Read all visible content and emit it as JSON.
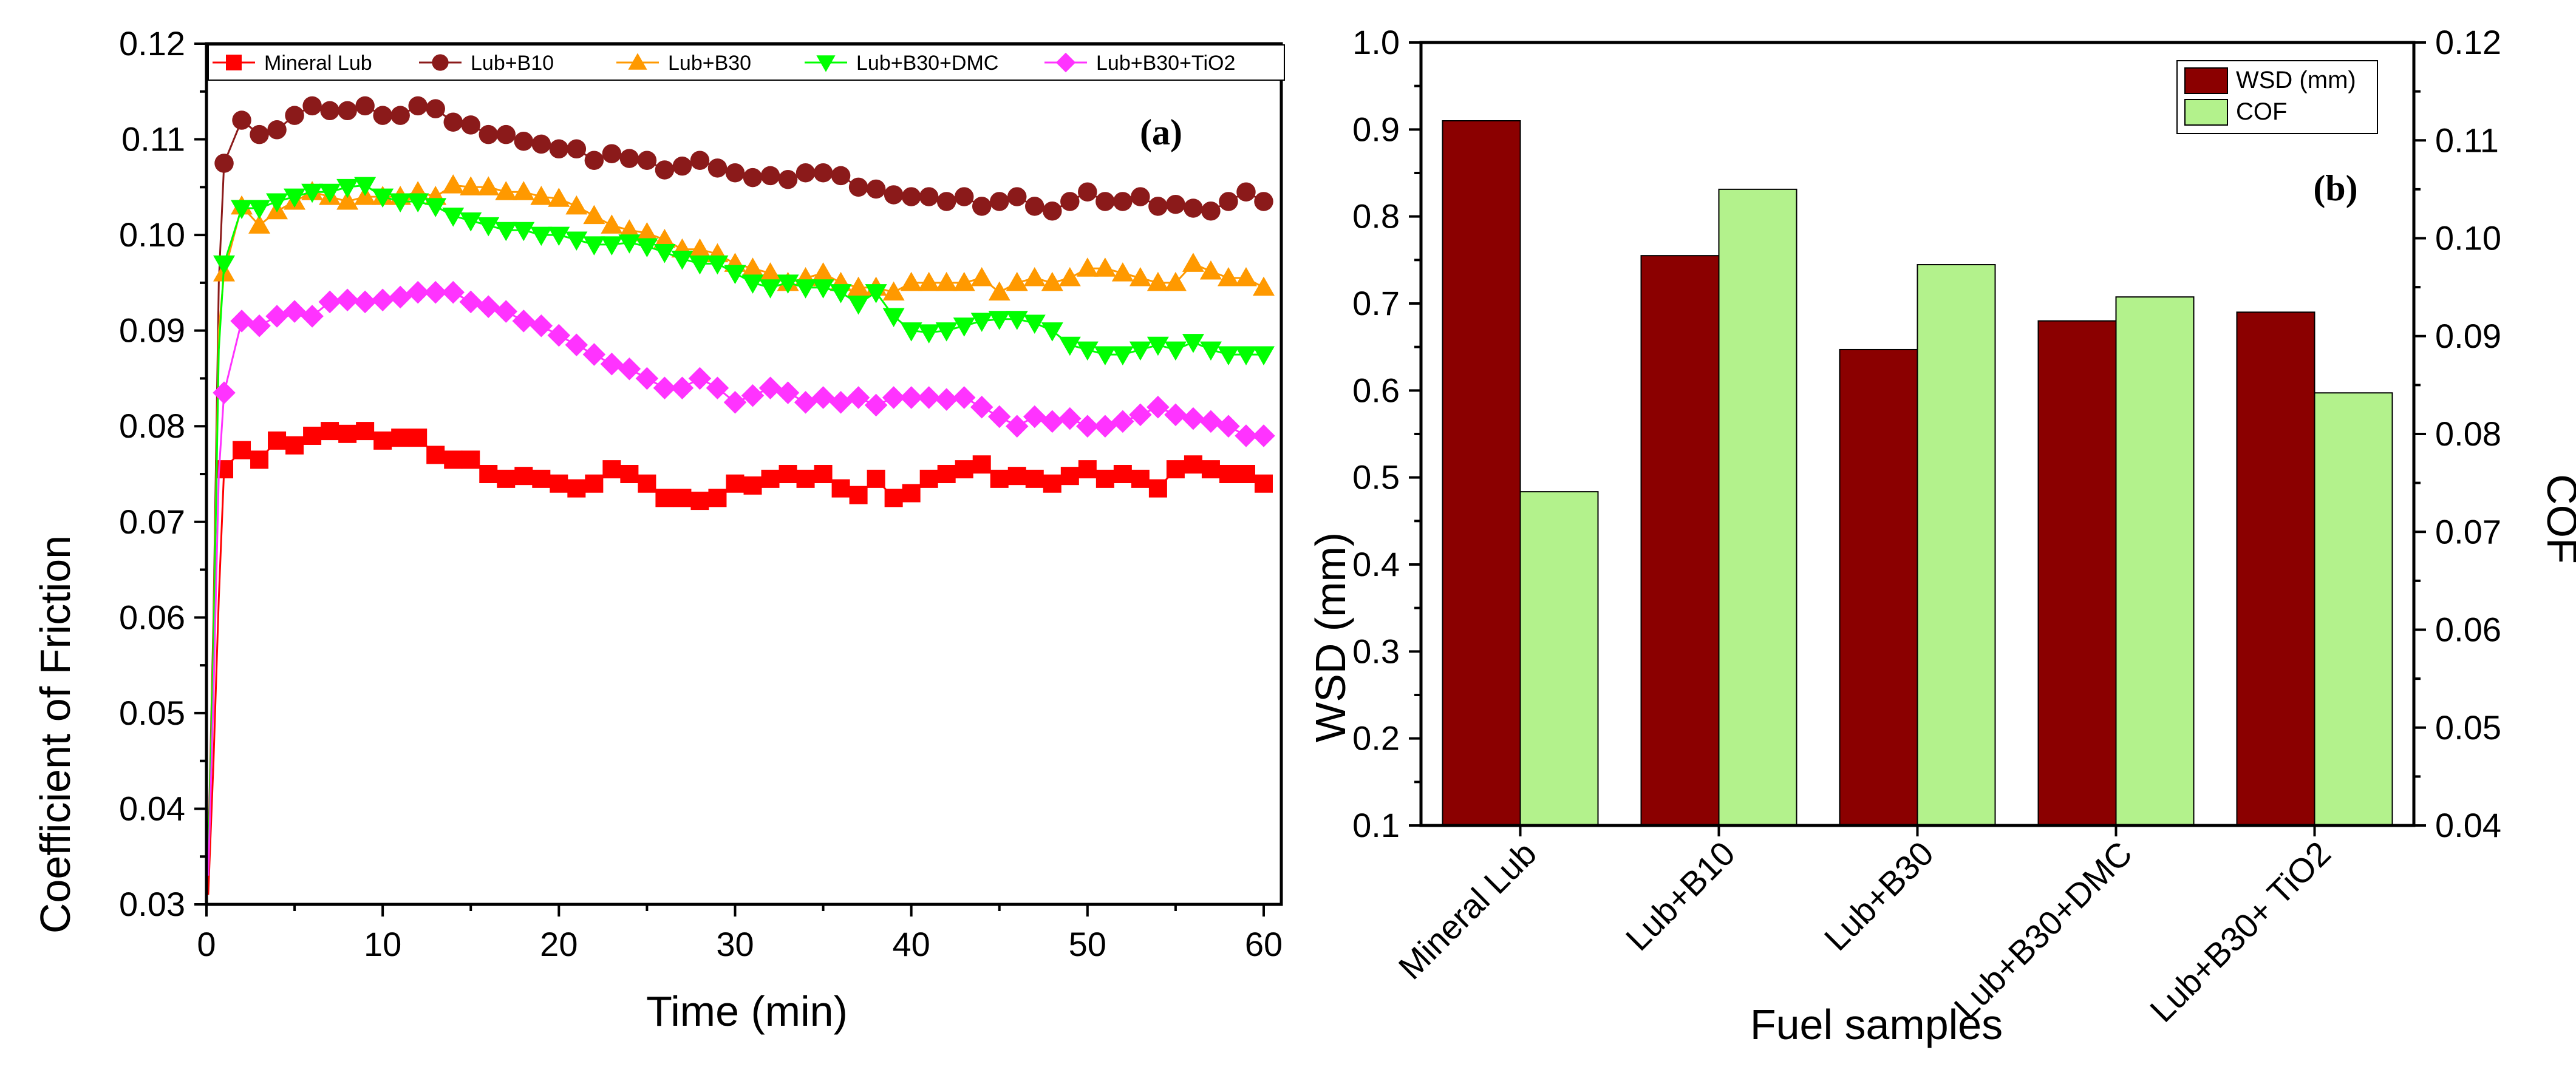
{
  "chart_data": [
    {
      "type": "line",
      "panel": "(a)",
      "title": "",
      "xlabel": "Time (min)",
      "ylabel": "Coefficient of Friction",
      "xlim": [
        0,
        61
      ],
      "ylim": [
        0.03,
        0.12
      ],
      "xticks": [
        0,
        10,
        20,
        30,
        40,
        50,
        60
      ],
      "yticks": [
        0.03,
        0.04,
        0.05,
        0.06,
        0.07,
        0.08,
        0.09,
        0.1,
        0.11,
        0.12
      ],
      "xtick_labels": [
        "0",
        "10",
        "20",
        "30",
        "40",
        "50",
        "60"
      ],
      "ytick_labels": [
        "0.03",
        "0.04",
        "0.05",
        "0.06",
        "0.07",
        "0.08",
        "0.09",
        "0.10",
        "0.11",
        "0.12"
      ],
      "legend_position": "top",
      "x": [
        0.1,
        0.4,
        0.7,
        1,
        2,
        3,
        4,
        5,
        6,
        7,
        8,
        9,
        10,
        11,
        12,
        13,
        14,
        15,
        16,
        17,
        18,
        19,
        20,
        21,
        22,
        23,
        24,
        25,
        26,
        27,
        28,
        29,
        30,
        31,
        32,
        33,
        34,
        35,
        36,
        37,
        38,
        39,
        40,
        41,
        42,
        43,
        44,
        45,
        46,
        47,
        48,
        49,
        50,
        51,
        52,
        53,
        54,
        55,
        56,
        57,
        58,
        59,
        60
      ],
      "series": [
        {
          "name": "Mineral Lub",
          "color": "#ff0000",
          "marker": "square",
          "values": [
            0.031,
            0.045,
            0.062,
            0.0755,
            0.0775,
            0.0765,
            0.0785,
            0.078,
            0.079,
            0.0795,
            0.0792,
            0.0795,
            0.0785,
            0.0788,
            0.0788,
            0.077,
            0.0765,
            0.0765,
            0.075,
            0.0745,
            0.0748,
            0.0745,
            0.074,
            0.0735,
            0.074,
            0.0755,
            0.075,
            0.074,
            0.0725,
            0.0725,
            0.0722,
            0.0725,
            0.074,
            0.0738,
            0.0745,
            0.075,
            0.0745,
            0.075,
            0.0735,
            0.0728,
            0.0745,
            0.0725,
            0.073,
            0.0745,
            0.075,
            0.0755,
            0.076,
            0.0745,
            0.0748,
            0.0745,
            0.074,
            0.0748,
            0.0755,
            0.0745,
            0.075,
            0.0745,
            0.0735,
            0.0755,
            0.076,
            0.0755,
            0.075,
            0.075,
            0.074
          ]
        },
        {
          "name": "Lub+B10",
          "color": "#8b1a1a",
          "marker": "circle",
          "values": [
            0.035,
            0.06,
            0.095,
            0.1075,
            0.112,
            0.1105,
            0.111,
            0.1125,
            0.1135,
            0.113,
            0.113,
            0.1135,
            0.1125,
            0.1125,
            0.1135,
            0.1132,
            0.1118,
            0.1115,
            0.1105,
            0.1105,
            0.1098,
            0.1095,
            0.109,
            0.109,
            0.1078,
            0.1085,
            0.108,
            0.1078,
            0.1068,
            0.1072,
            0.1078,
            0.107,
            0.1065,
            0.106,
            0.1062,
            0.1058,
            0.1065,
            0.1065,
            0.1062,
            0.105,
            0.1048,
            0.1042,
            0.104,
            0.104,
            0.1035,
            0.104,
            0.103,
            0.1035,
            0.104,
            0.103,
            0.1025,
            0.1035,
            0.1045,
            0.1035,
            0.1035,
            0.104,
            0.103,
            0.1032,
            0.1028,
            0.1025,
            0.1035,
            0.1045,
            0.1035
          ]
        },
        {
          "name": "Lub+B30",
          "color": "#ff9900",
          "marker": "triangle-up",
          "values": [
            0.034,
            0.058,
            0.09,
            0.096,
            0.103,
            0.101,
            0.1025,
            0.1035,
            0.1045,
            0.104,
            0.1035,
            0.104,
            0.104,
            0.104,
            0.1045,
            0.104,
            0.1052,
            0.105,
            0.105,
            0.1045,
            0.1045,
            0.104,
            0.1038,
            0.103,
            0.102,
            0.101,
            0.1005,
            0.1002,
            0.0995,
            0.0985,
            0.0985,
            0.098,
            0.097,
            0.0965,
            0.096,
            0.095,
            0.0955,
            0.096,
            0.095,
            0.0945,
            0.0945,
            0.094,
            0.095,
            0.095,
            0.095,
            0.095,
            0.0955,
            0.094,
            0.095,
            0.0955,
            0.095,
            0.0955,
            0.0965,
            0.0965,
            0.096,
            0.0955,
            0.095,
            0.095,
            0.097,
            0.0962,
            0.0955,
            0.0955,
            0.0945
          ]
        },
        {
          "name": "Lub+B30+DMC",
          "color": "#00ff00",
          "marker": "triangle-down",
          "values": [
            0.034,
            0.057,
            0.088,
            0.097,
            0.1028,
            0.1028,
            0.1035,
            0.104,
            0.1045,
            0.1045,
            0.105,
            0.1052,
            0.104,
            0.1035,
            0.1035,
            0.103,
            0.102,
            0.1015,
            0.101,
            0.1005,
            0.1005,
            0.1,
            0.1,
            0.0995,
            0.099,
            0.099,
            0.0992,
            0.0988,
            0.0982,
            0.0975,
            0.097,
            0.097,
            0.096,
            0.095,
            0.0945,
            0.095,
            0.0945,
            0.0945,
            0.094,
            0.0928,
            0.094,
            0.0915,
            0.09,
            0.0898,
            0.09,
            0.0905,
            0.091,
            0.0912,
            0.0912,
            0.0908,
            0.09,
            0.0885,
            0.088,
            0.0875,
            0.0875,
            0.088,
            0.0885,
            0.088,
            0.0888,
            0.088,
            0.0875,
            0.0875,
            0.0875
          ]
        },
        {
          "name": "Lub+B30+TiO2",
          "color": "#ff33ff",
          "marker": "diamond",
          "values": [
            0.033,
            0.052,
            0.075,
            0.0835,
            0.091,
            0.0905,
            0.0915,
            0.092,
            0.0915,
            0.093,
            0.0932,
            0.093,
            0.0932,
            0.0935,
            0.094,
            0.094,
            0.094,
            0.093,
            0.0925,
            0.092,
            0.091,
            0.0905,
            0.0895,
            0.0885,
            0.0875,
            0.0865,
            0.086,
            0.085,
            0.084,
            0.084,
            0.085,
            0.084,
            0.0825,
            0.0832,
            0.084,
            0.0835,
            0.0825,
            0.083,
            0.0825,
            0.083,
            0.0822,
            0.083,
            0.083,
            0.083,
            0.0828,
            0.083,
            0.082,
            0.081,
            0.08,
            0.081,
            0.0805,
            0.0808,
            0.08,
            0.08,
            0.0805,
            0.0812,
            0.082,
            0.0812,
            0.0808,
            0.0805,
            0.08,
            0.079,
            0.079
          ]
        }
      ]
    },
    {
      "type": "bar",
      "panel": "(b)",
      "title": "",
      "xlabel": "Fuel samples",
      "ylabel": "WSD (mm)",
      "ylabel_right": "COF",
      "categories": [
        "Mineral Lub",
        "Lub+B10",
        "Lub+B30",
        "Lub+B30+DMC",
        "Lub+B30+ TiO2"
      ],
      "ylim": [
        0.1,
        1.0
      ],
      "ylim_right": [
        0.04,
        0.12
      ],
      "yticks": [
        0.1,
        0.2,
        0.3,
        0.4,
        0.5,
        0.6,
        0.7,
        0.8,
        0.9,
        1.0
      ],
      "yticks_right": [
        0.04,
        0.05,
        0.06,
        0.07,
        0.08,
        0.09,
        0.1,
        0.11,
        0.12
      ],
      "ytick_labels": [
        "0.1",
        "0.2",
        "0.3",
        "0.4",
        "0.5",
        "0.6",
        "0.7",
        "0.8",
        "0.9",
        "1.0"
      ],
      "ytick_labels_right": [
        "0.04",
        "0.05",
        "0.06",
        "0.07",
        "0.08",
        "0.09",
        "0.10",
        "0.11",
        "0.12"
      ],
      "legend_position": "top-right",
      "series": [
        {
          "name": "WSD (mm)",
          "axis": "left",
          "color": "#8b0000",
          "values": [
            0.91,
            0.755,
            0.647,
            0.68,
            0.69
          ]
        },
        {
          "name": "COF",
          "axis": "right",
          "color": "#b3f28c",
          "values": [
            0.0741,
            0.105,
            0.0973,
            0.094,
            0.0842
          ]
        }
      ]
    }
  ]
}
